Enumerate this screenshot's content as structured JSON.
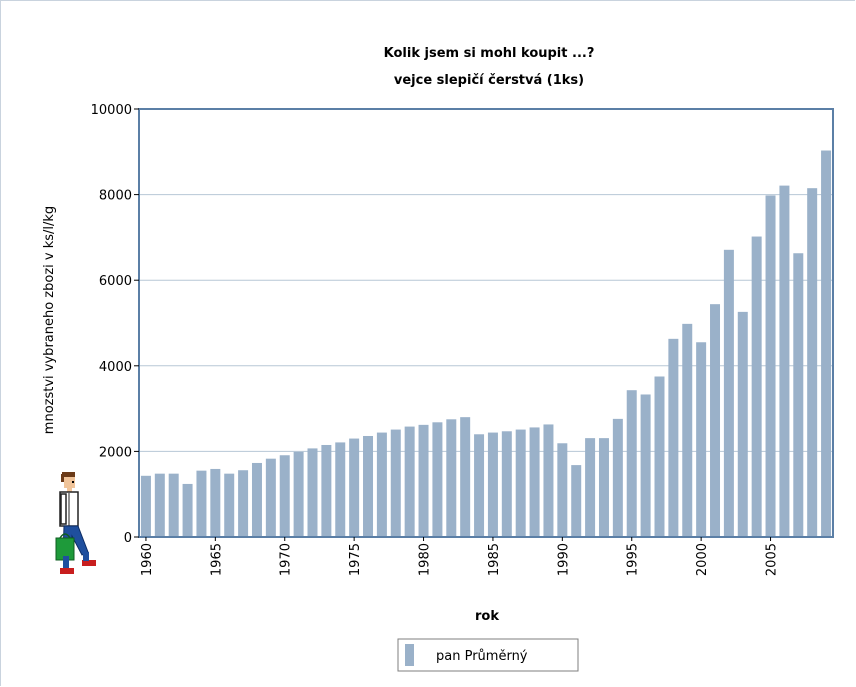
{
  "chart_data": {
    "type": "bar",
    "title": "Kolik jsem si  mohl koupit ...?",
    "subtitle": "vejce slepičí čerstvá (1ks)",
    "xlabel": "rok",
    "ylabel": "mnozstvi vybraneho zbozi v ks/l/kg",
    "ylim": [
      0,
      10000
    ],
    "yticks": [
      "0",
      "2000",
      "4000",
      "6000",
      "8000",
      "10000"
    ],
    "xticks": [
      "1960",
      "1965",
      "1970",
      "1975",
      "1980",
      "1985",
      "1990",
      "1995",
      "2000",
      "2005"
    ],
    "grid": true,
    "legend_position": "bottom-center",
    "categories": [
      1960,
      1961,
      1962,
      1963,
      1964,
      1965,
      1966,
      1967,
      1968,
      1969,
      1970,
      1971,
      1972,
      1973,
      1974,
      1975,
      1976,
      1977,
      1978,
      1979,
      1980,
      1981,
      1982,
      1983,
      1984,
      1985,
      1986,
      1987,
      1988,
      1989,
      1990,
      1991,
      1992,
      1993,
      1994,
      1995,
      1996,
      1997,
      1998,
      1999,
      2000,
      2001,
      2002,
      2003,
      2004,
      2005,
      2006,
      2007,
      2008,
      2009
    ],
    "series": [
      {
        "name": "pan Průměrný",
        "color": "#9ab1c9",
        "values": [
          1430,
          1480,
          1480,
          1240,
          1550,
          1590,
          1480,
          1560,
          1730,
          1830,
          1910,
          1990,
          2070,
          2150,
          2210,
          2300,
          2360,
          2440,
          2510,
          2580,
          2620,
          2680,
          2750,
          2800,
          2400,
          2440,
          2470,
          2510,
          2560,
          2630,
          2190,
          1680,
          2310,
          2310,
          2760,
          3430,
          3330,
          3750,
          4630,
          4980,
          4550,
          5440,
          6710,
          5260,
          7020,
          7980,
          8210,
          6630,
          8150,
          9030
        ]
      }
    ]
  },
  "colors": {
    "frame_border": "#5b7fa6",
    "grid": "#b7c7d6",
    "bar": "#9ab1c9"
  },
  "decor": {
    "figure": "walking-man-with-shopping-bag"
  }
}
